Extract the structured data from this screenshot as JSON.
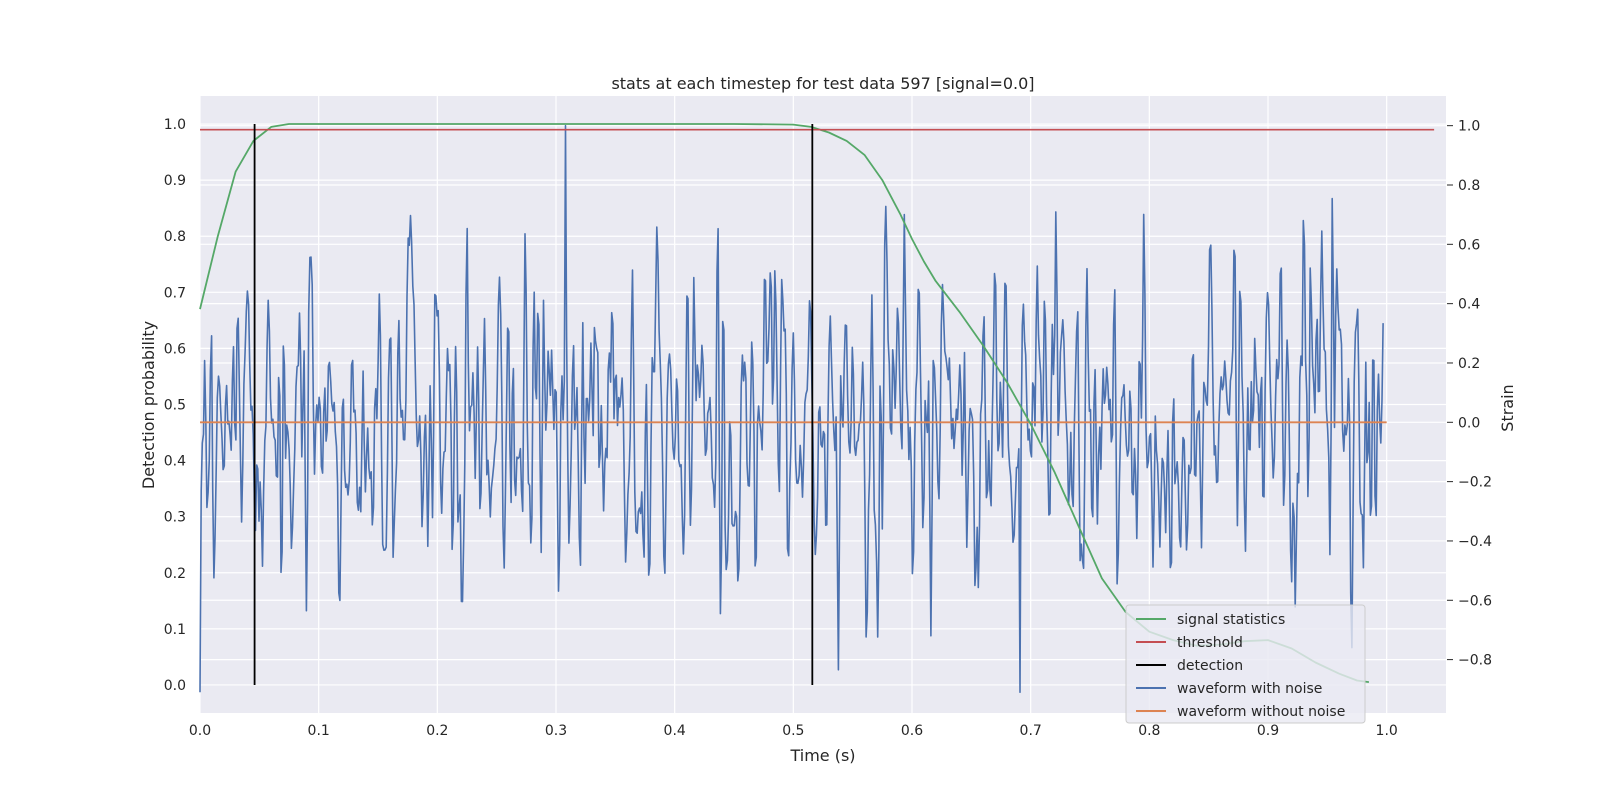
{
  "chart_data": {
    "type": "line",
    "title": "stats at each timestep for test data 597 [signal=0.0]",
    "xlabel": "Time (s)",
    "ylabel_left": "Detection probability",
    "ylabel_right": "Strain",
    "xlim": [
      0.0,
      1.05
    ],
    "ylim_left": [
      -0.05,
      1.05
    ],
    "ylim_right": [
      -0.98,
      1.1
    ],
    "x_ticks": [
      "0.0",
      "0.1",
      "0.2",
      "0.3",
      "0.4",
      "0.5",
      "0.6",
      "0.7",
      "0.8",
      "0.9",
      "1.0"
    ],
    "x_tick_values": [
      0.0,
      0.1,
      0.2,
      0.3,
      0.4,
      0.5,
      0.6,
      0.7,
      0.8,
      0.9,
      1.0
    ],
    "y_left_ticks": [
      "0.0",
      "0.1",
      "0.2",
      "0.3",
      "0.4",
      "0.5",
      "0.6",
      "0.7",
      "0.8",
      "0.9",
      "1.0"
    ],
    "y_left_tick_values": [
      0.0,
      0.1,
      0.2,
      0.3,
      0.4,
      0.5,
      0.6,
      0.7,
      0.8,
      0.9,
      1.0
    ],
    "y_right_ticks": [
      "−0.8",
      "−0.6",
      "−0.4",
      "−0.2",
      "0.0",
      "0.2",
      "0.4",
      "0.6",
      "0.8",
      "1.0"
    ],
    "y_right_tick_values": [
      -0.8,
      -0.6,
      -0.4,
      -0.2,
      0.0,
      0.2,
      0.4,
      0.6,
      0.8,
      1.0
    ],
    "grid": true,
    "legend_position": "lower right",
    "series": [
      {
        "name": "signal statistics",
        "axis": "left",
        "color": "#55a868",
        "x": [
          0.0,
          0.015,
          0.03,
          0.045,
          0.06,
          0.075,
          0.09,
          0.12,
          0.2,
          0.3,
          0.4,
          0.45,
          0.5,
          0.515,
          0.53,
          0.545,
          0.56,
          0.575,
          0.59,
          0.6,
          0.61,
          0.62,
          0.64,
          0.66,
          0.68,
          0.7,
          0.72,
          0.74,
          0.76,
          0.78,
          0.8,
          0.82,
          0.84,
          0.86,
          0.88,
          0.9,
          0.92,
          0.94,
          0.96,
          0.975,
          0.985
        ],
        "y": [
          0.67,
          0.8,
          0.915,
          0.97,
          0.995,
          1.0,
          1.0,
          1.0,
          1.0,
          1.0,
          1.0,
          1.0,
          0.999,
          0.995,
          0.985,
          0.97,
          0.945,
          0.9,
          0.84,
          0.795,
          0.755,
          0.72,
          0.665,
          0.605,
          0.54,
          0.465,
          0.38,
          0.285,
          0.19,
          0.13,
          0.095,
          0.08,
          0.07,
          0.072,
          0.078,
          0.08,
          0.065,
          0.04,
          0.02,
          0.008,
          0.005
        ]
      },
      {
        "name": "threshold",
        "axis": "left",
        "color": "#c44e52",
        "x": [
          0.0,
          1.04
        ],
        "y": [
          0.99,
          0.99
        ]
      },
      {
        "name": "detection",
        "axis": "left",
        "color": "#000000",
        "segments": [
          {
            "x": 0.046,
            "y0": 0.0,
            "y1": 1.0
          },
          {
            "x": 0.516,
            "y0": 0.0,
            "y1": 1.0
          }
        ]
      },
      {
        "name": "waveform with noise",
        "axis": "right",
        "color": "#4c72b0",
        "x_start": 0.0,
        "x_end": 0.997,
        "sample_count": 1024,
        "y_range": [
          -0.91,
          1.0
        ],
        "std": 0.27
      },
      {
        "name": "waveform without noise",
        "axis": "right",
        "color": "#dd8452",
        "x": [
          0.0,
          1.0
        ],
        "y": [
          0.0,
          0.0
        ]
      }
    ]
  }
}
